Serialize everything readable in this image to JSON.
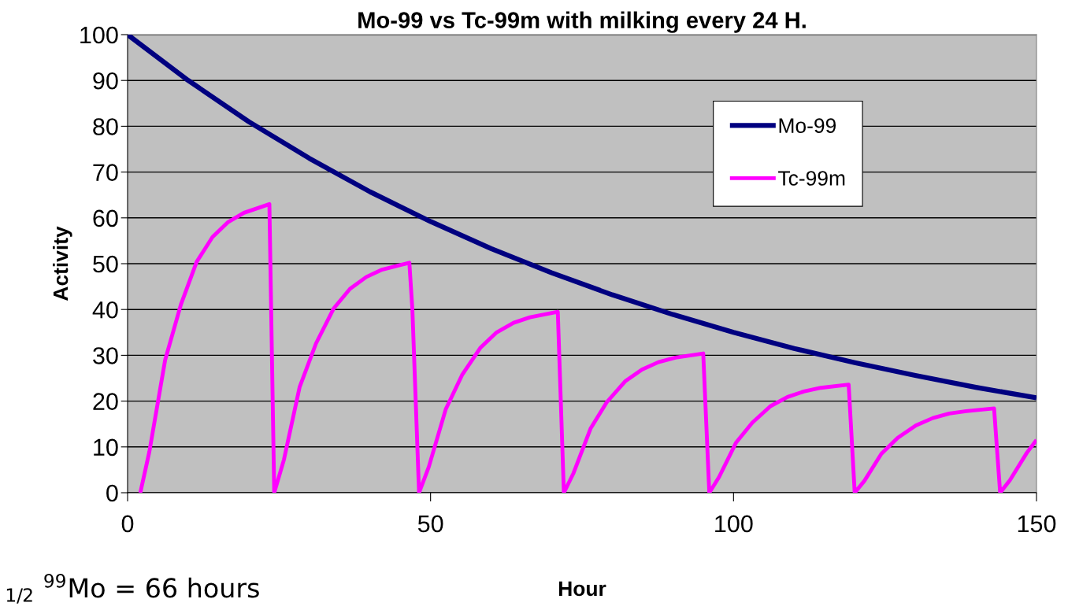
{
  "chart_data": {
    "type": "line",
    "title": "Mo-99 vs Tc-99m with milking every 24 H.",
    "xlabel": "Hour",
    "ylabel": "Activity",
    "annotations": [
      "$_{1/2}$ $^{99}$Mo = 66 hours"
    ],
    "xlim": [
      0,
      150
    ],
    "xticks": [
      0,
      50,
      100,
      150
    ],
    "ylim": [
      0,
      100
    ],
    "yticks": [
      0,
      10,
      20,
      30,
      40,
      50,
      60,
      70,
      80,
      90,
      100
    ],
    "grid": "y",
    "legend": "right",
    "line_style": "solid",
    "marker": "none",
    "series": [
      {
        "name": "Mo-99",
        "color": "#000080",
        "x": [
          0,
          10,
          20,
          30,
          40,
          50,
          60,
          70,
          80,
          90,
          100,
          110,
          120,
          130,
          140,
          150
        ],
        "values": [
          100,
          90.0,
          81.0,
          73.0,
          65.7,
          59.2,
          53.3,
          48.0,
          43.2,
          38.9,
          35.0,
          31.5,
          28.4,
          25.6,
          23.0,
          20.7
        ]
      },
      {
        "name": "Tc-99m",
        "color": "#ff00ff",
        "x": [
          2.1,
          3.6,
          6.2,
          8.8,
          11.4,
          14.0,
          16.6,
          19.2,
          23.4,
          24.2,
          25.8,
          28.4,
          31.1,
          34.0,
          36.7,
          39.4,
          42.0,
          46.5,
          47.0,
          48.1,
          49.7,
          52.5,
          55.2,
          58.2,
          60.9,
          63.7,
          66.4,
          71.0,
          72.0,
          73.6,
          76.4,
          79.1,
          82.1,
          84.9,
          87.6,
          90.4,
          95.0,
          96.0,
          97.6,
          100.4,
          103.1,
          106.1,
          108.9,
          111.6,
          114.4,
          119.0,
          120.0,
          121.6,
          124.4,
          127.1,
          130.1,
          132.9,
          135.6,
          138.4,
          143.0,
          144.0,
          145.6,
          148.4,
          150
        ],
        "values": [
          0,
          9.0,
          29.0,
          41.1,
          50.4,
          55.8,
          59.1,
          61.1,
          63.0,
          0,
          7.2,
          23.1,
          32.6,
          40.2,
          44.5,
          47.1,
          48.7,
          50.2,
          40.0,
          0,
          5.6,
          18.2,
          25.7,
          31.6,
          35.0,
          37.1,
          38.3,
          39.5,
          0,
          4.3,
          14.0,
          19.8,
          24.3,
          26.9,
          28.5,
          29.5,
          30.4,
          0,
          3.4,
          10.9,
          15.3,
          18.9,
          20.9,
          22.1,
          22.9,
          23.6,
          0,
          2.6,
          8.5,
          12.0,
          14.7,
          16.3,
          17.3,
          17.8,
          18.4,
          0,
          2.7,
          8.7,
          11.5
        ]
      }
    ]
  }
}
